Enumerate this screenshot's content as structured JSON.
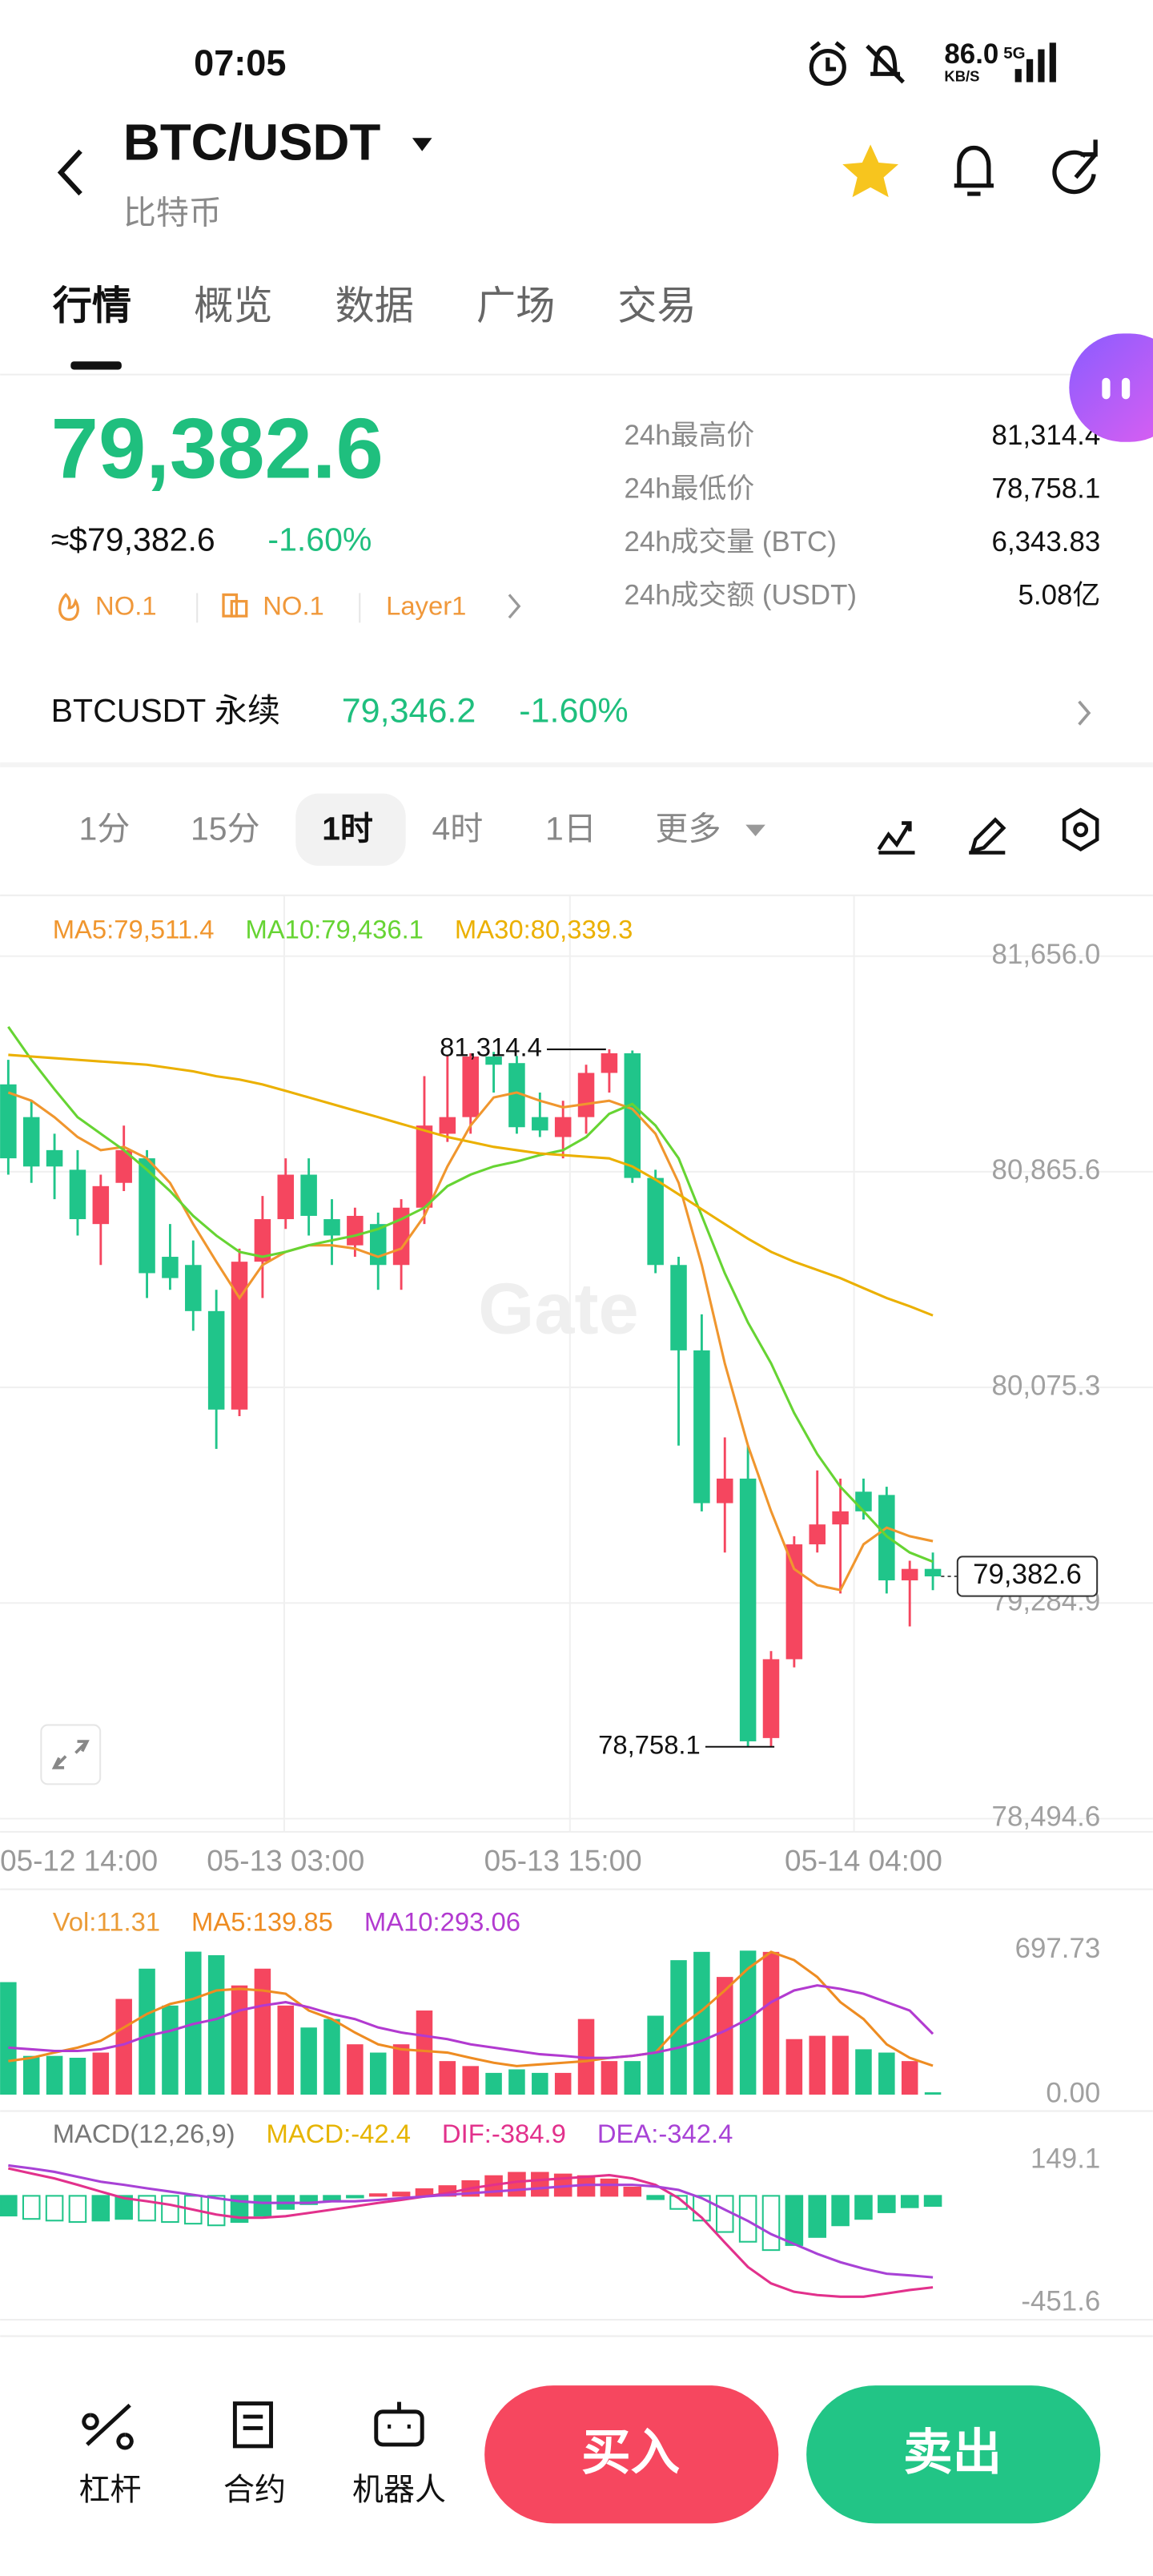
{
  "status_bar": {
    "time": "07:05",
    "speed": "86.0",
    "speed_unit": "KB/S",
    "network": "5G"
  },
  "header": {
    "pair": "BTC/USDT",
    "name": "比特币"
  },
  "tabs": [
    "行情",
    "概览",
    "数据",
    "广场",
    "交易"
  ],
  "ticker": {
    "price": "79,382.6",
    "usd": "≈$79,382.6",
    "change": "-1.60%",
    "badges": [
      "NO.1",
      "NO.1",
      "Layer1"
    ]
  },
  "stats": [
    {
      "label": "24h最高价",
      "value": "81,314.4"
    },
    {
      "label": "24h最低价",
      "value": "78,758.1"
    },
    {
      "label": "24h成交量 (BTC)",
      "value": "6,343.83"
    },
    {
      "label": "24h成交额 (USDT)",
      "value": "5.08亿"
    }
  ],
  "perpetual": {
    "name": "BTCUSDT 永续",
    "price": "79,346.2",
    "change": "-1.60%"
  },
  "intervals": [
    "1分",
    "15分",
    "1时",
    "4时",
    "1日",
    "更多"
  ],
  "selected_interval": 2,
  "bottom_bar": {
    "tools": [
      "杠杆",
      "合约",
      "机器人"
    ],
    "buy": "买入",
    "sell": "卖出"
  },
  "chart_data": [
    {
      "type": "candlestick",
      "categories": [
        "05-12 14:00",
        null,
        null,
        null,
        null,
        null,
        null,
        null,
        null,
        null,
        null,
        null,
        "05-13 03:00",
        null,
        null,
        null,
        null,
        null,
        null,
        null,
        null,
        null,
        null,
        null,
        "05-13 15:00",
        null,
        null,
        null,
        null,
        null,
        null,
        null,
        null,
        null,
        null,
        null,
        null,
        "05-14 04:00",
        null,
        null,
        null
      ],
      "open": [
        81186,
        81066,
        80945,
        80873,
        80674,
        80825,
        80915,
        80554,
        80524,
        80355,
        79994,
        80536,
        80692,
        80855,
        80692,
        80596,
        80674,
        80524,
        80734,
        81005,
        81066,
        81288,
        81264,
        81066,
        80993,
        81066,
        81228,
        81300,
        80843,
        80524,
        80211,
        79651,
        79741,
        78790,
        79079,
        79500,
        79573,
        79693,
        79681,
        79368,
        79410
      ],
      "high": [
        81276,
        81126,
        81005,
        80945,
        80855,
        81035,
        80945,
        80674,
        80614,
        80433,
        80584,
        80777,
        80915,
        80915,
        80765,
        80734,
        80716,
        80765,
        81216,
        81290,
        81300,
        81305,
        81290,
        81156,
        81126,
        81258,
        81314.4,
        81310,
        80873,
        80554,
        80343,
        79892,
        79862,
        79109,
        79530,
        79771,
        79741,
        79741,
        79711,
        79440,
        79470
      ],
      "low": [
        80855,
        80825,
        80765,
        80632,
        80524,
        80795,
        80403,
        80433,
        80283,
        79850,
        79970,
        80403,
        80656,
        80632,
        80524,
        80554,
        80433,
        80433,
        80674,
        80975,
        81005,
        81156,
        81005,
        80993,
        80915,
        81005,
        81156,
        80825,
        80494,
        79862,
        79621,
        79470,
        78760,
        78758.1,
        79049,
        79470,
        79320,
        79591,
        79320,
        79199,
        79332
      ],
      "close": [
        80915,
        80885,
        80885,
        80692,
        80813,
        80945,
        80494,
        80476,
        80355,
        79994,
        80536,
        80692,
        80855,
        80704,
        80632,
        80704,
        80524,
        80734,
        81035,
        81066,
        81288,
        81258,
        81029,
        81017,
        81066,
        81228,
        81300,
        80843,
        80524,
        80211,
        79651,
        79741,
        78778,
        79079,
        79500,
        79573,
        79621,
        79621,
        79368,
        79410,
        79382.6
      ],
      "up_color": "#f5465f",
      "down_color": "#20c58a",
      "lines": [
        {
          "name": "MA5:79,511.4",
          "color": "#f0962e",
          "values": [
            81156,
            81126,
            81066,
            80993,
            80945,
            80957,
            80915,
            80825,
            80674,
            80536,
            80403,
            80524,
            80572,
            80596,
            80596,
            80584,
            80554,
            80584,
            80704,
            80885,
            81035,
            81138,
            81156,
            81126,
            81102,
            81114,
            81126,
            81096,
            81005,
            80825,
            80524,
            80163,
            79862,
            79621,
            79410,
            79350,
            79332,
            79500,
            79561,
            79530,
            79511.4
          ]
        },
        {
          "name": "MA10:79,436.1",
          "color": "#66d433",
          "values": [
            81397,
            81276,
            81168,
            81066,
            81005,
            80945,
            80873,
            80795,
            80704,
            80632,
            80572,
            80554,
            80572,
            80596,
            80614,
            80632,
            80656,
            80692,
            80734,
            80813,
            80855,
            80885,
            80903,
            80927,
            80945,
            80993,
            81078,
            81114,
            81035,
            80915,
            80704,
            80494,
            80313,
            80163,
            79982,
            79831,
            79711,
            79621,
            79530,
            79470,
            79436.1
          ]
        },
        {
          "name": "MA30:80,339.3",
          "color": "#ebb000",
          "values": [
            81294,
            81288,
            81282,
            81276,
            81270,
            81264,
            81258,
            81246,
            81234,
            81216,
            81204,
            81186,
            81162,
            81138,
            81114,
            81090,
            81066,
            81041,
            81017,
            80993,
            80975,
            80957,
            80945,
            80933,
            80927,
            80921,
            80915,
            80885,
            80837,
            80783,
            80728,
            80674,
            80620,
            80572,
            80536,
            80506,
            80476,
            80439,
            80403,
            80373,
            80339.3
          ]
        }
      ],
      "ylim": [
        78494.6,
        81656.0
      ],
      "yticks": [
        {
          "value": 81656.0,
          "label": "81,656.0"
        },
        {
          "value": 80865.6,
          "label": "80,865.6"
        },
        {
          "value": 80075.3,
          "label": "80,075.3"
        },
        {
          "value": 79284.9,
          "label": "79,284.9"
        },
        {
          "value": 78494.6,
          "label": "78,494.6"
        }
      ],
      "grid": true,
      "high_label": "81,314.4",
      "low_label": "78,758.1",
      "last_price_label": "79,382.6",
      "watermark": "Gate"
    },
    {
      "type": "bar",
      "series": [
        {
          "name": "Vol:11.31",
          "color": "#eb9b36",
          "values": [
            543,
            187,
            187,
            178,
            203,
            462,
            608,
            430,
            690,
            673,
            527,
            608,
            430,
            324,
            365,
            243,
            203,
            243,
            406,
            162,
            138,
            105,
            122,
            105,
            105,
            365,
            162,
            162,
            381,
            649,
            689,
            568,
            695,
            689,
            268,
            284,
            284,
            219,
            203,
            162,
            11.31
          ]
        },
        {
          "name": "MA5:139.85",
          "color": "#ee8c22",
          "values": [
            162,
            178,
            203,
            227,
            260,
            324,
            389,
            438,
            462,
            503,
            511,
            503,
            487,
            406,
            365,
            300,
            243,
            219,
            211,
            203,
            178,
            154,
            138,
            146,
            154,
            162,
            178,
            187,
            203,
            324,
            406,
            503,
            608,
            689,
            649,
            568,
            446,
            365,
            243,
            178,
            139.85
          ]
        },
        {
          "name": "MA10:293.06",
          "color": "#b23ad0",
          "values": [
            227,
            219,
            211,
            211,
            219,
            243,
            284,
            308,
            341,
            365,
            406,
            430,
            446,
            422,
            389,
            365,
            324,
            300,
            284,
            268,
            243,
            227,
            211,
            195,
            187,
            178,
            178,
            187,
            203,
            227,
            260,
            308,
            365,
            446,
            503,
            527,
            511,
            487,
            446,
            406,
            293.06
          ]
        }
      ],
      "ylim": [
        0,
        697.73
      ],
      "yticks": [
        697.73,
        {
          "value": 0,
          "label": "0.00"
        }
      ]
    },
    {
      "type": "macd",
      "title": "MACD(12,26,9)",
      "series": [
        {
          "name": "MACD:-42.4",
          "color": "#e6b400",
          "values": [
            -83,
            -97,
            -104,
            -110,
            -104,
            -97,
            -104,
            -110,
            -117,
            -124,
            -110,
            -83,
            -55,
            -35,
            -21,
            -7,
            7,
            14,
            28,
            41,
            62,
            83,
            97,
            97,
            90,
            83,
            69,
            35,
            -14,
            -55,
            -104,
            -152,
            -193,
            -228,
            -207,
            -173,
            -124,
            -97,
            -69,
            -48,
            -42.4
          ]
        },
        {
          "name": "DIF:-384.9",
          "color": "#e2318c",
          "values": [
            115,
            94,
            73,
            46,
            18,
            -10,
            -23,
            -37,
            -58,
            -79,
            -92,
            -92,
            -86,
            -72,
            -58,
            -44,
            -30,
            -17,
            -3,
            11,
            32,
            46,
            59,
            66,
            73,
            80,
            87,
            73,
            46,
            -10,
            -92,
            -196,
            -299,
            -368,
            -403,
            -417,
            -424,
            -424,
            -410,
            -396,
            -384.9
          ]
        },
        {
          "name": "DEA:-342.4",
          "color": "#a842d6",
          "values": [
            128,
            115,
            101,
            80,
            59,
            46,
            32,
            18,
            4,
            -10,
            -23,
            -30,
            -30,
            -30,
            -23,
            -23,
            -17,
            -10,
            -3,
            4,
            11,
            18,
            25,
            32,
            39,
            46,
            46,
            46,
            39,
            25,
            -10,
            -58,
            -106,
            -161,
            -202,
            -244,
            -279,
            -306,
            -327,
            -334,
            -342.4
          ]
        }
      ],
      "ylim": [
        -451.6,
        149.1
      ],
      "yticks": [
        149.1,
        -451.6
      ]
    }
  ]
}
